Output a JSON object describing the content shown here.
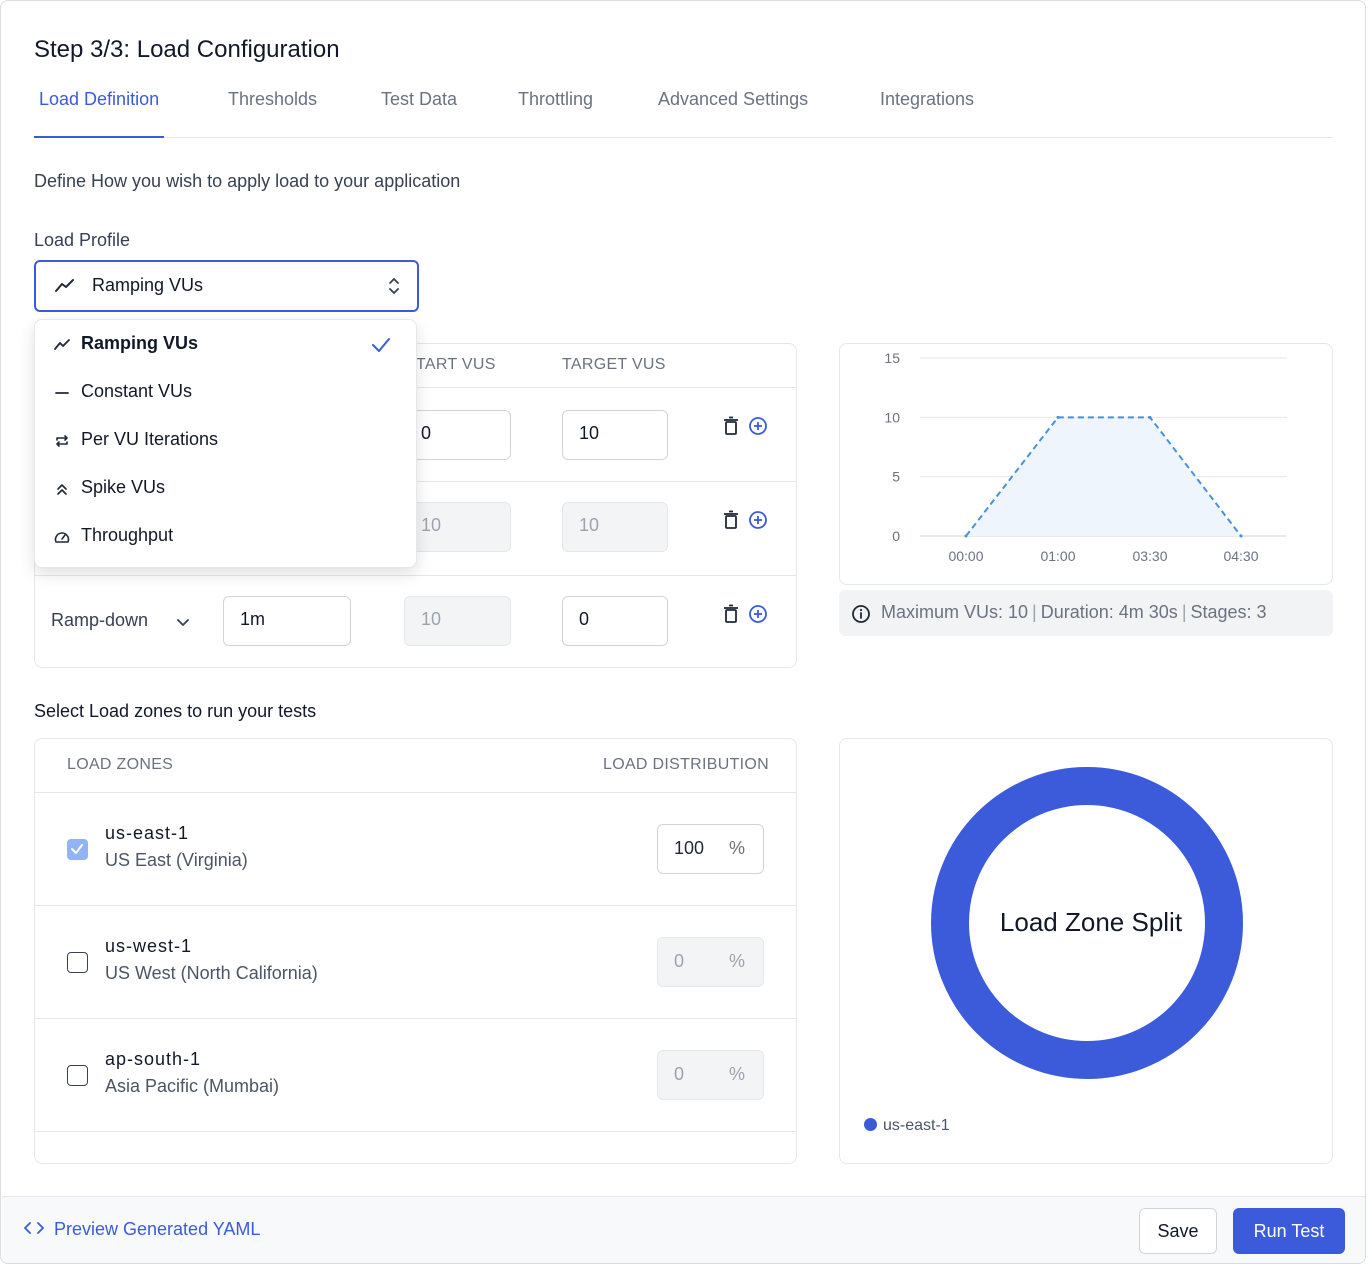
{
  "header": {
    "title": "Step 3/3: Load Configuration"
  },
  "tabs": [
    {
      "label": "Load Definition",
      "active": true
    },
    {
      "label": "Thresholds"
    },
    {
      "label": "Test Data"
    },
    {
      "label": "Throttling"
    },
    {
      "label": "Advanced Settings"
    },
    {
      "label": "Integrations"
    }
  ],
  "intro": "Define How you wish to apply load to your application",
  "load_profile": {
    "label": "Load Profile",
    "selected": "Ramping VUs",
    "options": [
      {
        "label": "Ramping VUs",
        "icon": "ramp-icon",
        "selected": true
      },
      {
        "label": "Constant VUs",
        "icon": "dash-icon"
      },
      {
        "label": "Per VU Iterations",
        "icon": "repeat-icon"
      },
      {
        "label": "Spike VUs",
        "icon": "double-chevron-up-icon"
      },
      {
        "label": "Throughput",
        "icon": "gauge-icon"
      }
    ]
  },
  "stages": {
    "columns": {
      "start": "START VUS",
      "target": "TARGET VUS"
    },
    "rows": [
      {
        "start": "0",
        "target": "10"
      },
      {
        "start": "10",
        "target": "10"
      },
      {
        "type": "Ramp-down",
        "duration": "1m",
        "start": "10",
        "target": "0"
      }
    ]
  },
  "chart_data": {
    "type": "area",
    "x": [
      "00:00",
      "01:00",
      "03:30",
      "04:30"
    ],
    "values": [
      0,
      10,
      10,
      0
    ],
    "yticks": [
      0,
      5,
      10,
      15
    ],
    "ylim": [
      0,
      15
    ],
    "grid": true,
    "line_style": "dashed",
    "color": "#4a90d9"
  },
  "summary": {
    "max_vus": "Maximum VUs: 10",
    "duration": "Duration: 4m 30s",
    "stages": "Stages: 3"
  },
  "zones": {
    "label": "Select Load zones to run your tests",
    "col_zones": "LOAD ZONES",
    "col_distribution": "LOAD DISTRIBUTION",
    "items": [
      {
        "code": "us-east-1",
        "name": "US East (Virginia)",
        "checked": true,
        "value": "100",
        "unit": "%"
      },
      {
        "code": "us-west-1",
        "name": "US West (North California)",
        "checked": false,
        "value": "0",
        "unit": "%"
      },
      {
        "code": "ap-south-1",
        "name": "Asia Pacific (Mumbai)",
        "checked": false,
        "value": "0",
        "unit": "%"
      }
    ]
  },
  "donut": {
    "title": "Load Zone Split",
    "color": "#3b5bdb",
    "slices": [
      {
        "name": "us-east-1",
        "value": 100
      }
    ],
    "legend": "us-east-1"
  },
  "footer": {
    "preview_yaml": "Preview Generated YAML",
    "save": "Save",
    "run": "Run Test"
  }
}
